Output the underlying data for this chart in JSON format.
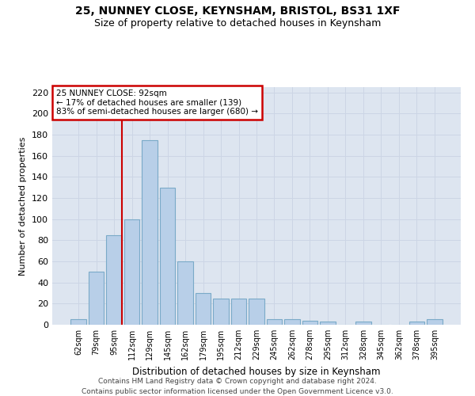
{
  "title1": "25, NUNNEY CLOSE, KEYNSHAM, BRISTOL, BS31 1XF",
  "title2": "Size of property relative to detached houses in Keynsham",
  "xlabel": "Distribution of detached houses by size in Keynsham",
  "ylabel": "Number of detached properties",
  "categories": [
    "62sqm",
    "79sqm",
    "95sqm",
    "112sqm",
    "129sqm",
    "145sqm",
    "162sqm",
    "179sqm",
    "195sqm",
    "212sqm",
    "229sqm",
    "245sqm",
    "262sqm",
    "278sqm",
    "295sqm",
    "312sqm",
    "328sqm",
    "345sqm",
    "362sqm",
    "378sqm",
    "395sqm"
  ],
  "values": [
    5,
    50,
    85,
    100,
    175,
    130,
    60,
    30,
    25,
    25,
    25,
    5,
    5,
    4,
    3,
    0,
    3,
    0,
    0,
    3,
    5
  ],
  "bar_color": "#b8cfe8",
  "bar_edge_color": "#7aaac8",
  "annotation_text": "25 NUNNEY CLOSE: 92sqm\n← 17% of detached houses are smaller (139)\n83% of semi-detached houses are larger (680) →",
  "annotation_box_color": "#ffffff",
  "annotation_box_edge": "#cc0000",
  "property_line_color": "#cc0000",
  "grid_color": "#ccd5e5",
  "background_color": "#dde5f0",
  "footer1": "Contains HM Land Registry data © Crown copyright and database right 2024.",
  "footer2": "Contains public sector information licensed under the Open Government Licence v3.0.",
  "ylim": [
    0,
    225
  ],
  "yticks": [
    0,
    20,
    40,
    60,
    80,
    100,
    120,
    140,
    160,
    180,
    200,
    220
  ],
  "property_line_xindex": 2.425
}
